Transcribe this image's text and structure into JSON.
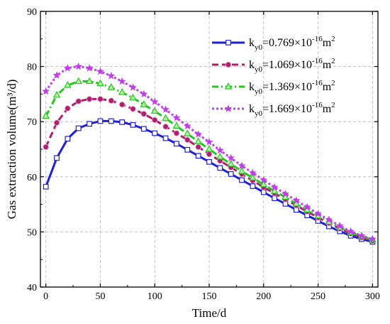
{
  "chart_data": {
    "type": "line",
    "xlabel": "Time/d",
    "ylabel": "Gas extraction volume(m³/d)",
    "xlim": [
      -5,
      305
    ],
    "ylim": [
      40,
      90
    ],
    "xticks": [
      0,
      50,
      100,
      150,
      200,
      250,
      300
    ],
    "yticks": [
      40,
      50,
      60,
      70,
      80,
      90
    ],
    "grid": true,
    "legend_position": "top-right",
    "x": [
      0,
      10,
      20,
      30,
      40,
      50,
      60,
      70,
      80,
      90,
      100,
      110,
      120,
      130,
      140,
      150,
      160,
      170,
      180,
      190,
      200,
      210,
      220,
      230,
      240,
      250,
      260,
      270,
      280,
      290,
      300
    ],
    "series": [
      {
        "name": "ky0=0.769×10⁻¹⁶m²",
        "label_parts": {
          "base": "k",
          "sub": "y0",
          "value": "=0.769×10",
          "exp": "-16",
          "unit": "m",
          "unit_exp": "2"
        },
        "color": "#1f1fd6",
        "marker": "square",
        "dash": "solid",
        "values": [
          58.2,
          63.4,
          66.9,
          68.8,
          69.6,
          70.1,
          70.1,
          69.9,
          69.4,
          68.7,
          67.9,
          67.0,
          66.0,
          64.9,
          63.8,
          62.7,
          61.6,
          60.5,
          59.4,
          58.3,
          57.2,
          56.1,
          55.1,
          54.0,
          53.0,
          52.0,
          51.0,
          50.1,
          49.3,
          48.7,
          48.2
        ]
      },
      {
        "name": "ky0=1.069×10⁻¹⁶m²",
        "label_parts": {
          "base": "k",
          "sub": "y0",
          "value": "=1.069×10",
          "exp": "-16",
          "unit": "m",
          "unit_exp": "2"
        },
        "color": "#b01f6e",
        "marker": "circle",
        "dash": "dash",
        "values": [
          65.4,
          69.8,
          72.4,
          73.7,
          74.1,
          74.1,
          73.8,
          73.1,
          72.3,
          71.4,
          70.3,
          69.1,
          67.9,
          66.7,
          65.4,
          64.1,
          62.9,
          61.7,
          60.5,
          59.3,
          58.1,
          57.0,
          55.9,
          54.8,
          53.7,
          52.6,
          51.6,
          50.6,
          49.7,
          49.0,
          48.4
        ]
      },
      {
        "name": "ky0=1.369×10⁻¹⁶m²",
        "label_parts": {
          "base": "k",
          "sub": "y0",
          "value": "=1.369×10",
          "exp": "-16",
          "unit": "m",
          "unit_exp": "2"
        },
        "color": "#22c81e",
        "marker": "triangle",
        "dash": "dashdot",
        "values": [
          71.0,
          74.8,
          76.6,
          77.3,
          77.3,
          76.9,
          76.2,
          75.3,
          74.3,
          73.1,
          71.9,
          70.6,
          69.2,
          67.8,
          66.4,
          65.0,
          63.6,
          62.3,
          61.0,
          59.8,
          58.6,
          57.4,
          56.3,
          55.1,
          54.0,
          52.9,
          51.8,
          50.8,
          49.9,
          49.2,
          48.6
        ]
      },
      {
        "name": "ky0=1.669×10⁻¹⁶m²",
        "label_parts": {
          "base": "k",
          "sub": "y0",
          "value": "=1.669×10",
          "exp": "-16",
          "unit": "m",
          "unit_exp": "2"
        },
        "color": "#bf3ee8",
        "marker": "star",
        "dash": "dot",
        "values": [
          75.5,
          78.4,
          79.7,
          80.0,
          79.7,
          79.1,
          78.3,
          77.3,
          76.2,
          75.0,
          73.6,
          72.2,
          70.7,
          69.2,
          67.7,
          66.3,
          64.8,
          63.4,
          62.0,
          60.7,
          59.4,
          58.1,
          56.9,
          55.7,
          54.5,
          53.3,
          52.2,
          51.1,
          50.1,
          49.3,
          48.7
        ]
      }
    ]
  }
}
